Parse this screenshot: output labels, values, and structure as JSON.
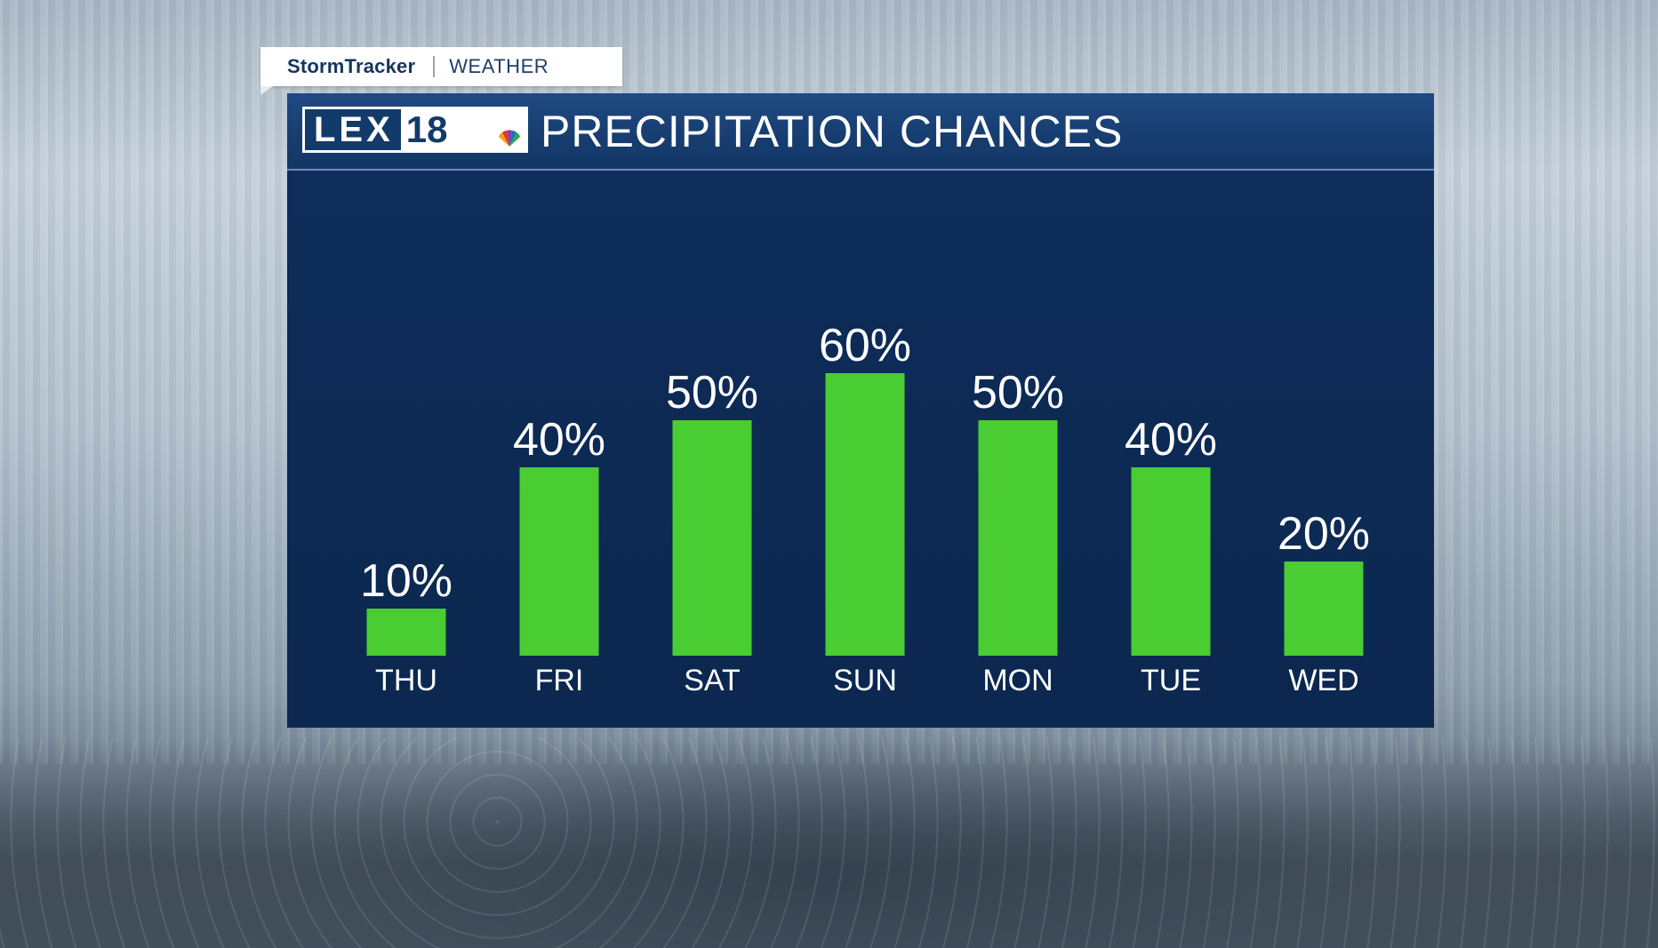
{
  "brand": {
    "stormtracker": "StormTracker",
    "weather": "WEATHER",
    "logo_text": "LEX",
    "logo_number": "18"
  },
  "colors": {
    "bar": "#49cd32",
    "panel": "#0d2b56",
    "header": "#173d70",
    "text": "#ffffff"
  },
  "chart_data": {
    "type": "bar",
    "title": "PRECIPITATION CHANCES",
    "categories": [
      "THU",
      "FRI",
      "SAT",
      "SUN",
      "MON",
      "TUE",
      "WED"
    ],
    "values": [
      10,
      40,
      50,
      60,
      50,
      40,
      20
    ],
    "value_labels": [
      "10%",
      "40%",
      "50%",
      "60%",
      "50%",
      "40%",
      "20%"
    ],
    "unit": "%",
    "ylim": [
      0,
      100
    ],
    "grid": false,
    "legend": "none"
  }
}
